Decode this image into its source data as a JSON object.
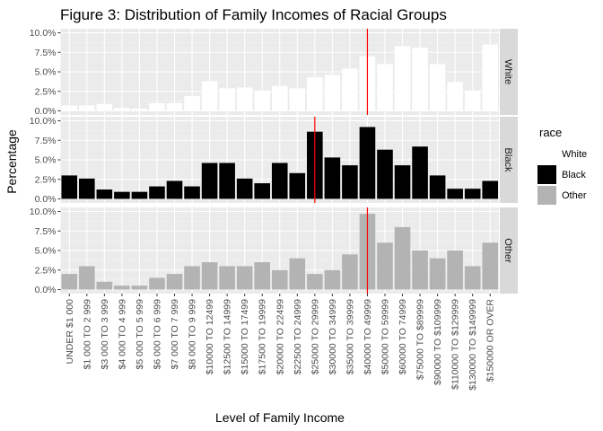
{
  "chart_data": {
    "type": "bar",
    "title": "Figure 3: Distribution of Family Incomes of Racial Groups",
    "xlabel": "Level of Family Income",
    "ylabel": "Percentage",
    "ylim": [
      0,
      10
    ],
    "y_ticks": [
      "0.0%",
      "2.5%",
      "5.0%",
      "7.5%",
      "10.0%"
    ],
    "y_tick_values": [
      0,
      2.5,
      5,
      7.5,
      10
    ],
    "categories": [
      "UNDER $1 000",
      "$1 000 TO 2 999",
      "$3 000 TO 3 999",
      "$4 000 TO 4 999",
      "$5 000 TO 5 999",
      "$6 000 TO 6 999",
      "$7 000 TO 7 999",
      "$8 000 TO 9 999",
      "$10000 TO 12499",
      "$12500 TO 14999",
      "$15000 TO 17499",
      "$17500 TO 19999",
      "$20000 TO 22499",
      "$22500 TO 24999",
      "$25000 TO 29999",
      "$30000 TO 34999",
      "$35000 TO 39999",
      "$40000 TO 49999",
      "$50000 TO 59999",
      "$60000 TO 74999",
      "$75000 TO $89999",
      "$90000 TO $109999",
      "$110000 TO $129999",
      "$130000 TO $149999",
      "$150000 OR OVER"
    ],
    "legend": {
      "title": "race",
      "position": "right"
    },
    "grid": true,
    "series": [
      {
        "name": "White",
        "color": "#ffffff",
        "median_category_index": 17,
        "values": [
          0.7,
          0.7,
          0.9,
          0.4,
          0.3,
          1.0,
          1.0,
          1.9,
          3.8,
          2.9,
          3.0,
          2.6,
          3.2,
          2.9,
          4.3,
          4.6,
          5.4,
          7.0,
          6.0,
          8.3,
          8.1,
          6.0,
          3.7,
          2.6,
          8.5
        ]
      },
      {
        "name": "Black",
        "color": "#000000",
        "median_category_index": 14,
        "values": [
          3.0,
          2.6,
          1.2,
          0.9,
          0.9,
          1.6,
          2.3,
          1.6,
          4.6,
          4.6,
          2.6,
          2.0,
          4.6,
          3.3,
          8.6,
          5.3,
          4.3,
          9.2,
          6.3,
          4.3,
          6.7,
          3.0,
          1.3,
          1.3,
          2.3
        ]
      },
      {
        "name": "Other",
        "color": "#b3b3b3",
        "median_category_index": 17,
        "values": [
          2.0,
          3.0,
          1.0,
          0.5,
          0.5,
          1.5,
          2.0,
          3.0,
          3.5,
          3.0,
          3.0,
          3.5,
          2.5,
          4.0,
          2.0,
          2.5,
          4.5,
          9.7,
          6.0,
          8.0,
          5.0,
          4.0,
          5.0,
          3.0,
          6.0
        ]
      }
    ],
    "median_line_color": "#ff0000"
  }
}
